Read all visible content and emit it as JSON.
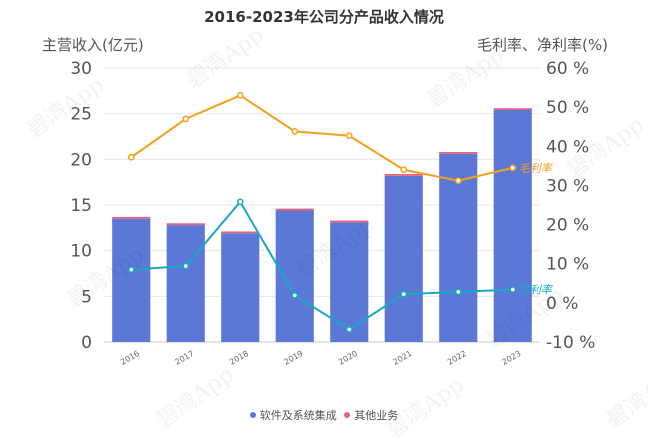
{
  "watermark": "碧湾App",
  "colors": {
    "software": "#5b78d6",
    "other": "#e8637a",
    "gross_margin": "#f5a01a",
    "net_margin": "#17a8c4",
    "axis_text": "#555555",
    "grid": "#e8e8e8"
  },
  "chart_data": {
    "type": "bar",
    "title": "2016-2023年公司分产品收入情况",
    "ylabel_left": "主营收入(亿元)",
    "ylabel_right": "毛利率、净利率(%)",
    "categories": [
      "2016",
      "2017",
      "2018",
      "2019",
      "2020",
      "2021",
      "2022",
      "2023"
    ],
    "ylim_left": [
      0,
      30
    ],
    "yticks_left": [
      "0",
      "5",
      "10",
      "15",
      "20",
      "25",
      "30"
    ],
    "ylim_right": [
      -10,
      60
    ],
    "yticks_right": [
      "-10 %",
      "0 %",
      "10 %",
      "20 %",
      "30 %",
      "40 %",
      "50 %",
      "60 %"
    ],
    "stacked_series": [
      {
        "name": "软件及系统集成",
        "values": [
          13.5,
          12.8,
          11.9,
          14.4,
          13.1,
          18.2,
          20.6,
          25.4
        ]
      },
      {
        "name": "其他业务",
        "values": [
          0.2,
          0.2,
          0.2,
          0.2,
          0.2,
          0.2,
          0.2,
          0.2
        ]
      }
    ],
    "line_series": [
      {
        "name": "毛利率",
        "values": [
          37.2,
          47.0,
          53.0,
          43.8,
          42.7,
          34.0,
          31.2,
          34.5
        ]
      },
      {
        "name": "净利率",
        "values": [
          8.5,
          9.4,
          25.8,
          1.9,
          -6.8,
          2.2,
          2.8,
          3.4
        ]
      }
    ],
    "legend": [
      "软件及系统集成",
      "其他业务"
    ],
    "legend_position": "bottom",
    "grid": true
  }
}
